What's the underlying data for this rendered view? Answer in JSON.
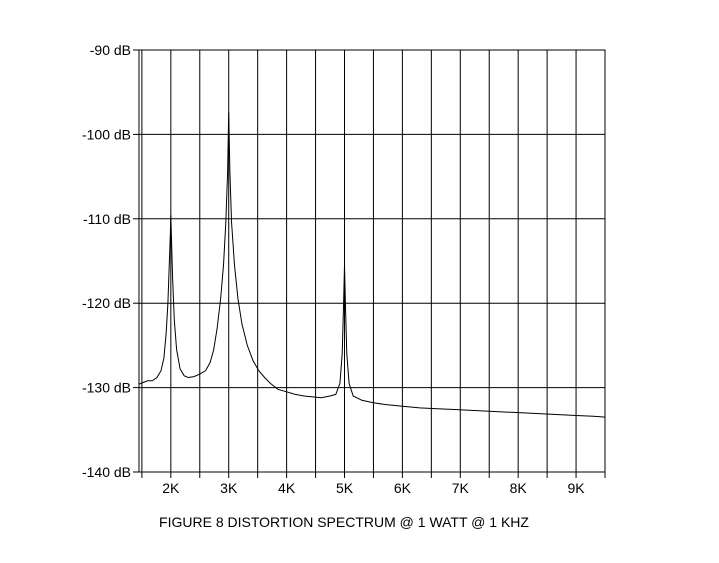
{
  "chart_data": {
    "type": "line",
    "title": "",
    "caption": "FIGURE 8  DISTORTION SPECTRUM @ 1 WATT @ 1 KHZ",
    "xlabel": "",
    "ylabel": "",
    "x_unit": "Hz",
    "y_unit": "dB",
    "xlim": [
      1450,
      9500
    ],
    "ylim": [
      -140,
      -90
    ],
    "y_ticks": [
      -90,
      -100,
      -110,
      -120,
      -130,
      -140
    ],
    "y_tick_labels": [
      "-90 dB",
      "-100 dB",
      "-110 dB",
      "-120 dB",
      "-130 dB",
      "-140 dB"
    ],
    "x_ticks": [
      2000,
      3000,
      4000,
      5000,
      6000,
      7000,
      8000,
      9000
    ],
    "x_tick_labels": [
      "2K",
      "3K",
      "4K",
      "5K",
      "6K",
      "7K",
      "8K",
      "9K"
    ],
    "grid": true,
    "colors": {
      "trace": "#000000",
      "grid": "#000000",
      "background": "#ffffff"
    },
    "series": [
      {
        "values": [
          [
            1450,
            -129.6
          ],
          [
            1520,
            -129.4
          ],
          [
            1600,
            -129.2
          ],
          [
            1680,
            -129.2
          ],
          [
            1760,
            -128.8
          ],
          [
            1830,
            -128.0
          ],
          [
            1880,
            -126.5
          ],
          [
            1920,
            -123.5
          ],
          [
            1950,
            -120.0
          ],
          [
            1975,
            -115.0
          ],
          [
            1990,
            -112.0
          ],
          [
            2000,
            -109.6
          ],
          [
            2010,
            -112.0
          ],
          [
            2030,
            -117.0
          ],
          [
            2060,
            -122.0
          ],
          [
            2100,
            -125.5
          ],
          [
            2160,
            -127.8
          ],
          [
            2230,
            -128.6
          ],
          [
            2300,
            -128.8
          ],
          [
            2400,
            -128.7
          ],
          [
            2500,
            -128.4
          ],
          [
            2600,
            -128.0
          ],
          [
            2680,
            -127.0
          ],
          [
            2740,
            -125.5
          ],
          [
            2800,
            -123.0
          ],
          [
            2860,
            -119.5
          ],
          [
            2910,
            -115.5
          ],
          [
            2950,
            -110.5
          ],
          [
            2980,
            -104.5
          ],
          [
            3000,
            -97.4
          ],
          [
            3020,
            -104.5
          ],
          [
            3050,
            -110.5
          ],
          [
            3100,
            -115.5
          ],
          [
            3160,
            -119.5
          ],
          [
            3230,
            -122.5
          ],
          [
            3320,
            -125.0
          ],
          [
            3420,
            -126.8
          ],
          [
            3520,
            -128.0
          ],
          [
            3620,
            -128.8
          ],
          [
            3720,
            -129.5
          ],
          [
            3850,
            -130.2
          ],
          [
            4000,
            -130.5
          ],
          [
            4150,
            -130.8
          ],
          [
            4300,
            -131.0
          ],
          [
            4450,
            -131.1
          ],
          [
            4600,
            -131.2
          ],
          [
            4750,
            -131.0
          ],
          [
            4850,
            -130.8
          ],
          [
            4920,
            -129.5
          ],
          [
            4960,
            -126.0
          ],
          [
            4985,
            -120.0
          ],
          [
            5000,
            -115.5
          ],
          [
            5015,
            -120.0
          ],
          [
            5040,
            -126.0
          ],
          [
            5080,
            -129.5
          ],
          [
            5150,
            -131.0
          ],
          [
            5300,
            -131.5
          ],
          [
            5500,
            -131.8
          ],
          [
            5700,
            -132.0
          ],
          [
            6000,
            -132.2
          ],
          [
            6300,
            -132.4
          ],
          [
            6600,
            -132.5
          ],
          [
            6900,
            -132.6
          ],
          [
            7200,
            -132.7
          ],
          [
            7500,
            -132.8
          ],
          [
            7800,
            -132.9
          ],
          [
            8100,
            -133.0
          ],
          [
            8400,
            -133.1
          ],
          [
            8700,
            -133.2
          ],
          [
            9000,
            -133.3
          ],
          [
            9300,
            -133.4
          ],
          [
            9500,
            -133.5
          ]
        ]
      }
    ]
  }
}
